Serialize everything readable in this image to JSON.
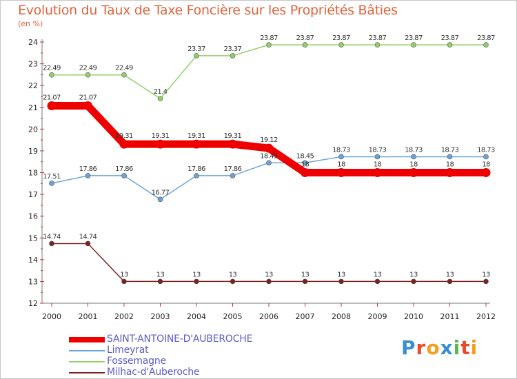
{
  "page": {
    "title": "Evolution du Taux de Taxe Foncière sur les Propriétés Bâties",
    "unit": "(en %)"
  },
  "logo": {
    "letters": [
      "P",
      "r",
      "o",
      "x",
      "i",
      "t",
      "i"
    ],
    "colors": [
      "#3a8fd0",
      "#e84a2a",
      "#f0a020",
      "#3a8fd0",
      "#58b848",
      "#e84a2a",
      "#f0a020"
    ]
  },
  "chart_data": {
    "type": "line",
    "title": "Evolution du Taux de Taxe Foncière sur les Propriétés Bâties",
    "ylabel": "(en %)",
    "xlabel": "",
    "ylim": [
      12,
      24
    ],
    "yticks": [
      12,
      13,
      14,
      15,
      16,
      17,
      18,
      19,
      20,
      21,
      22,
      23,
      24
    ],
    "x": [
      "2000",
      "2001",
      "2002",
      "2003",
      "2004",
      "2005",
      "2006",
      "2007",
      "2008",
      "2009",
      "2010",
      "2011",
      "2012"
    ],
    "grid": false,
    "series": [
      {
        "name": "SAINT-ANTOINE-D'AUBEROCHE",
        "color": "#ee0000",
        "values": [
          21.07,
          21.07,
          19.31,
          19.31,
          19.31,
          19.31,
          19.12,
          18,
          18,
          18,
          18,
          18,
          18
        ],
        "labels": [
          "21.07",
          "21.07",
          "19.31",
          "19.31",
          "19.31",
          "19.31",
          "19.12",
          "18",
          "18",
          "18",
          "18",
          "18",
          "18"
        ]
      },
      {
        "name": "Limeyrat",
        "color": "#6aa3d8",
        "values": [
          17.51,
          17.86,
          17.86,
          16.77,
          17.86,
          17.86,
          18.45,
          18.45,
          18.73,
          18.73,
          18.73,
          18.73,
          18.73
        ],
        "labels": [
          "17.51",
          "17.86",
          "17.86",
          "16.77",
          "17.86",
          "17.86",
          "18.45",
          "18.45",
          "18.73",
          "18.73",
          "18.73",
          "18.73",
          "18.73"
        ]
      },
      {
        "name": "Fossemagne",
        "color": "#8fd068",
        "values": [
          22.49,
          22.49,
          22.49,
          21.4,
          23.37,
          23.37,
          23.87,
          23.87,
          23.87,
          23.87,
          23.87,
          23.87,
          23.87
        ],
        "labels": [
          "22.49",
          "22.49",
          "22.49",
          "21.4",
          "23.37",
          "23.37",
          "23.87",
          "23.87",
          "23.87",
          "23.87",
          "23.87",
          "23.87",
          "23.87"
        ]
      },
      {
        "name": "Milhac-d'Auberoche",
        "color": "#7a2222",
        "values": [
          14.74,
          14.74,
          13,
          13,
          13,
          13,
          13,
          13,
          13,
          13,
          13,
          13,
          13
        ],
        "labels": [
          "14.74",
          "14.74",
          "13",
          "13",
          "13",
          "13",
          "13",
          "13",
          "13",
          "13",
          "13",
          "13",
          "13"
        ]
      }
    ]
  }
}
